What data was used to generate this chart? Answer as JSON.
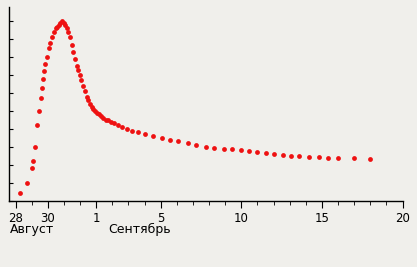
{
  "title": "",
  "dot_color": "#ee1111",
  "dot_size": 12,
  "background_color": "#f0efeb",
  "points": [
    [
      28.3,
      0.04
    ],
    [
      28.7,
      0.1
    ],
    [
      29.0,
      0.18
    ],
    [
      29.1,
      0.22
    ],
    [
      29.2,
      0.3
    ],
    [
      29.35,
      0.42
    ],
    [
      29.45,
      0.5
    ],
    [
      29.55,
      0.57
    ],
    [
      29.65,
      0.63
    ],
    [
      29.72,
      0.68
    ],
    [
      29.78,
      0.72
    ],
    [
      29.85,
      0.76
    ],
    [
      29.92,
      0.8
    ],
    [
      30.05,
      0.85
    ],
    [
      30.15,
      0.88
    ],
    [
      30.25,
      0.91
    ],
    [
      30.38,
      0.94
    ],
    [
      30.48,
      0.96
    ],
    [
      30.58,
      0.97
    ],
    [
      30.68,
      0.98
    ],
    [
      30.78,
      0.99
    ],
    [
      30.88,
      1.0
    ],
    [
      30.98,
      0.99
    ],
    [
      31.08,
      0.98
    ],
    [
      31.18,
      0.96
    ],
    [
      31.28,
      0.94
    ],
    [
      31.38,
      0.91
    ],
    [
      31.48,
      0.87
    ],
    [
      31.58,
      0.83
    ],
    [
      31.68,
      0.79
    ],
    [
      31.78,
      0.75
    ],
    [
      31.88,
      0.73
    ],
    [
      31.98,
      0.7
    ],
    [
      32.08,
      0.67
    ],
    [
      32.18,
      0.64
    ],
    [
      32.28,
      0.61
    ],
    [
      32.4,
      0.58
    ],
    [
      32.52,
      0.56
    ],
    [
      32.62,
      0.54
    ],
    [
      32.72,
      0.52
    ],
    [
      32.82,
      0.51
    ],
    [
      32.92,
      0.5
    ],
    [
      33.05,
      0.49
    ],
    [
      33.15,
      0.48
    ],
    [
      33.28,
      0.47
    ],
    [
      33.42,
      0.46
    ],
    [
      33.58,
      0.45
    ],
    [
      33.72,
      0.45
    ],
    [
      33.9,
      0.44
    ],
    [
      34.1,
      0.43
    ],
    [
      34.35,
      0.42
    ],
    [
      34.6,
      0.41
    ],
    [
      34.9,
      0.4
    ],
    [
      35.2,
      0.39
    ],
    [
      35.6,
      0.38
    ],
    [
      36.0,
      0.37
    ],
    [
      36.5,
      0.36
    ],
    [
      37.1,
      0.35
    ],
    [
      37.6,
      0.34
    ],
    [
      38.1,
      0.33
    ],
    [
      38.7,
      0.32
    ],
    [
      39.2,
      0.31
    ],
    [
      39.8,
      0.3
    ],
    [
      40.3,
      0.295
    ],
    [
      40.9,
      0.29
    ],
    [
      41.4,
      0.285
    ],
    [
      42.0,
      0.28
    ],
    [
      42.5,
      0.275
    ],
    [
      43.0,
      0.27
    ],
    [
      43.5,
      0.265
    ],
    [
      44.0,
      0.26
    ],
    [
      44.6,
      0.255
    ],
    [
      45.1,
      0.25
    ],
    [
      45.6,
      0.248
    ],
    [
      46.2,
      0.245
    ],
    [
      46.8,
      0.242
    ],
    [
      47.4,
      0.24
    ],
    [
      48.0,
      0.238
    ],
    [
      49.0,
      0.235
    ],
    [
      50.0,
      0.232
    ]
  ],
  "xtick_major_positions": [
    28,
    30,
    33,
    37,
    42,
    47,
    52
  ],
  "xtick_major_labels": [
    "28",
    "30",
    "1",
    "5",
    "10",
    "15",
    "20"
  ],
  "xlabel_aug": "Август",
  "xlabel_sep": "Сентябрь",
  "xlim": [
    27.6,
    51.5
  ],
  "ylim": [
    0.0,
    1.08
  ]
}
